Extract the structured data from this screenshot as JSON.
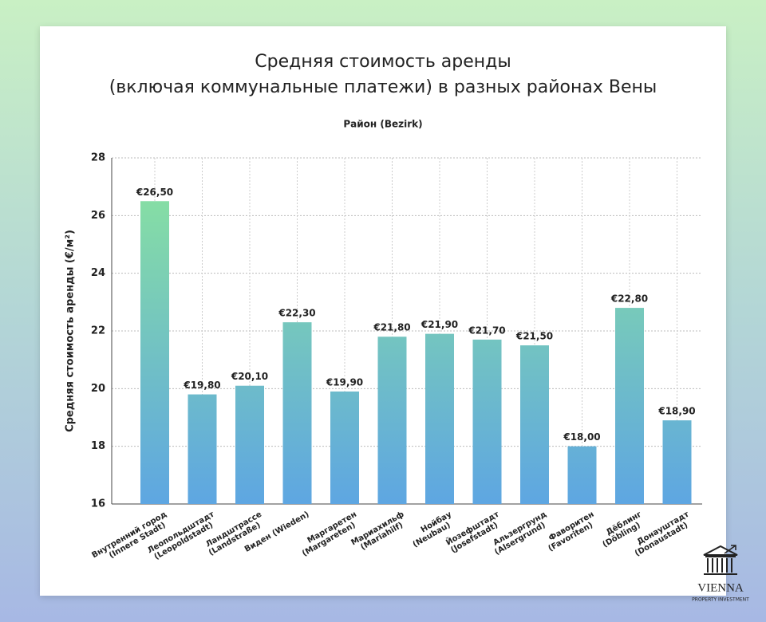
{
  "chart_data": {
    "type": "bar",
    "title": [
      "Средняя стоимость аренды",
      "(включая коммунальные платежи) в разных районах Вены"
    ],
    "x_label": "Район (Bezirk)",
    "y_label": "Средняя стоимость аренды (€/м²)",
    "categories": [
      "Внутренний город\n(Innere Stadt)",
      "Леопольдштадт\n(Leopoldstadt)",
      "Ландштрассе\n(Landstraße)",
      "Виден (Wieden)",
      "Маргаретен\n(Margareten)",
      "Мариахильф\n(Mariahilf)",
      "Нойбау\n(Neubau)",
      "Йозефштадт\n(Josefstadt)",
      "Альзергрунд\n(Alsergrund)",
      "Фаворитен\n(Favoriten)",
      "Дёблинг\n(Döbling)",
      "Донауштадт\n(Donaustadt)"
    ],
    "values": [
      26.5,
      19.8,
      20.1,
      22.3,
      19.9,
      21.8,
      21.9,
      21.7,
      21.5,
      18.0,
      22.8,
      18.9
    ],
    "value_labels": [
      "€26,50",
      "€19,80",
      "€20,10",
      "€22,30",
      "€19,90",
      "€21,80",
      "€21,90",
      "€21,70",
      "€21,50",
      "€18,00",
      "€22,80",
      "€18,90"
    ],
    "colors": [
      "#8be59c",
      "#5ea6e2"
    ],
    "ylim": [
      16,
      28
    ],
    "yticks": [
      16,
      18,
      20,
      22,
      24,
      26,
      28
    ],
    "grid": true
  },
  "logo": {
    "name": "VIENNA",
    "tagline": "PROPERTY INVESTMENT"
  }
}
